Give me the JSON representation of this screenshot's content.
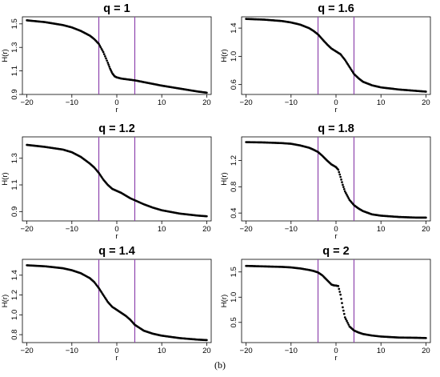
{
  "caption": "(b)",
  "colors": {
    "curve": "#000000",
    "vline": "#8e44ad",
    "axis": "#000000"
  },
  "chart_data": [
    {
      "type": "line",
      "title": "q = 1",
      "xlabel": "r",
      "ylabel": "H(r)",
      "xlim": [
        -21,
        21
      ],
      "ylim": [
        0.9,
        1.56
      ],
      "xticks": [
        -20,
        -10,
        0,
        10,
        20
      ],
      "yticks": [
        0.9,
        1.1,
        1.3,
        1.5
      ],
      "ytick_labels": [
        "0.9",
        "1.1",
        "1.3",
        "1.5"
      ],
      "vlines": [
        -4,
        4
      ],
      "x": [
        -20,
        -16,
        -12,
        -10,
        -8,
        -6,
        -5,
        -4,
        -3,
        -2,
        -1.5,
        -1,
        -0.5,
        0,
        1,
        2,
        4,
        6,
        8,
        10,
        14,
        18,
        20
      ],
      "y": [
        1.53,
        1.515,
        1.49,
        1.47,
        1.44,
        1.4,
        1.37,
        1.33,
        1.26,
        1.17,
        1.12,
        1.08,
        1.055,
        1.045,
        1.035,
        1.03,
        1.02,
        1.005,
        0.99,
        0.975,
        0.95,
        0.925,
        0.915
      ]
    },
    {
      "type": "line",
      "title": "q = 1.6",
      "xlabel": "r",
      "ylabel": "H(r)",
      "xlim": [
        -21,
        21
      ],
      "ylim": [
        0.46,
        1.56
      ],
      "xticks": [
        -20,
        -10,
        0,
        10,
        20
      ],
      "yticks": [
        0.6,
        1.0,
        1.4
      ],
      "ytick_labels": [
        "0.6",
        "1.0",
        "1.4"
      ],
      "vlines": [
        -4,
        4
      ],
      "x": [
        -20,
        -16,
        -12,
        -10,
        -8,
        -6,
        -5,
        -4,
        -3,
        -2,
        -1,
        0,
        1,
        2,
        3,
        4,
        5,
        6,
        8,
        10,
        14,
        18,
        20
      ],
      "y": [
        1.53,
        1.52,
        1.5,
        1.48,
        1.45,
        1.4,
        1.36,
        1.31,
        1.24,
        1.17,
        1.11,
        1.07,
        1.03,
        0.95,
        0.85,
        0.75,
        0.69,
        0.64,
        0.59,
        0.56,
        0.53,
        0.51,
        0.5
      ]
    },
    {
      "type": "line",
      "title": "q = 1.2",
      "xlabel": "r",
      "ylabel": "H(r)",
      "xlim": [
        -21,
        21
      ],
      "ylim": [
        0.83,
        1.46
      ],
      "xticks": [
        -20,
        -10,
        0,
        10,
        20
      ],
      "yticks": [
        0.9,
        1.1,
        1.3
      ],
      "ytick_labels": [
        "0.9",
        "1.1",
        "1.3"
      ],
      "vlines": [
        -4,
        4
      ],
      "x": [
        -20,
        -16,
        -12,
        -10,
        -8,
        -6,
        -5,
        -4,
        -3,
        -2,
        -1,
        0,
        1,
        2,
        3,
        4,
        6,
        8,
        10,
        14,
        18,
        20
      ],
      "y": [
        1.4,
        1.385,
        1.365,
        1.345,
        1.31,
        1.26,
        1.23,
        1.19,
        1.14,
        1.1,
        1.07,
        1.055,
        1.04,
        1.02,
        1.0,
        0.985,
        0.955,
        0.93,
        0.91,
        0.885,
        0.87,
        0.865
      ]
    },
    {
      "type": "line",
      "title": "q = 1.8",
      "xlabel": "r",
      "ylabel": "H(r)",
      "xlim": [
        -21,
        21
      ],
      "ylim": [
        0.28,
        1.56
      ],
      "xticks": [
        -20,
        -10,
        0,
        10,
        20
      ],
      "yticks": [
        0.4,
        0.8,
        1.2
      ],
      "ytick_labels": [
        "0.4",
        "0.8",
        "1.2"
      ],
      "vlines": [
        -4,
        4
      ],
      "x": [
        -20,
        -16,
        -12,
        -10,
        -8,
        -6,
        -5,
        -4,
        -3,
        -2,
        -1,
        0,
        0.5,
        1,
        1.5,
        2,
        3,
        4,
        5,
        6,
        8,
        10,
        14,
        18,
        20
      ],
      "y": [
        1.48,
        1.475,
        1.465,
        1.455,
        1.43,
        1.395,
        1.365,
        1.33,
        1.27,
        1.2,
        1.14,
        1.1,
        1.06,
        0.95,
        0.83,
        0.73,
        0.6,
        0.52,
        0.47,
        0.43,
        0.38,
        0.36,
        0.34,
        0.33,
        0.33
      ]
    },
    {
      "type": "line",
      "title": "q = 1.4",
      "xlabel": "r",
      "ylabel": "H(r)",
      "xlim": [
        -21,
        21
      ],
      "ylim": [
        0.72,
        1.56
      ],
      "xticks": [
        -20,
        -10,
        0,
        10,
        20
      ],
      "yticks": [
        0.8,
        1.0,
        1.2,
        1.4
      ],
      "ytick_labels": [
        "0.8",
        "1.0",
        "1.2",
        "1.4"
      ],
      "vlines": [
        -4,
        4
      ],
      "x": [
        -20,
        -16,
        -12,
        -10,
        -8,
        -6,
        -5,
        -4,
        -3,
        -2,
        -1,
        0,
        1,
        2,
        3,
        4,
        5,
        6,
        8,
        10,
        14,
        18,
        20
      ],
      "y": [
        1.5,
        1.49,
        1.47,
        1.45,
        1.42,
        1.37,
        1.33,
        1.27,
        1.2,
        1.13,
        1.08,
        1.05,
        1.02,
        0.99,
        0.95,
        0.9,
        0.87,
        0.84,
        0.81,
        0.79,
        0.765,
        0.75,
        0.745
      ]
    },
    {
      "type": "line",
      "title": "q = 2",
      "xlabel": "r",
      "ylabel": "H(r)",
      "xlim": [
        -21,
        21
      ],
      "ylim": [
        0.1,
        1.75
      ],
      "xticks": [
        -20,
        -10,
        0,
        10,
        20
      ],
      "yticks": [
        0.5,
        1.0,
        1.5
      ],
      "ytick_labels": [
        "0.5",
        "1.0",
        "1.5"
      ],
      "vlines": [
        -4,
        4
      ],
      "x": [
        -20,
        -16,
        -12,
        -10,
        -8,
        -6,
        -5,
        -4,
        -3,
        -2,
        -1,
        -0.5,
        0,
        0.5,
        1,
        1.5,
        2,
        3,
        4,
        5,
        6,
        8,
        10,
        14,
        18,
        20
      ],
      "y": [
        1.62,
        1.61,
        1.6,
        1.59,
        1.57,
        1.54,
        1.52,
        1.49,
        1.43,
        1.34,
        1.25,
        1.235,
        1.23,
        1.22,
        1.05,
        0.8,
        0.6,
        0.42,
        0.34,
        0.3,
        0.27,
        0.24,
        0.22,
        0.2,
        0.195,
        0.19
      ]
    }
  ]
}
